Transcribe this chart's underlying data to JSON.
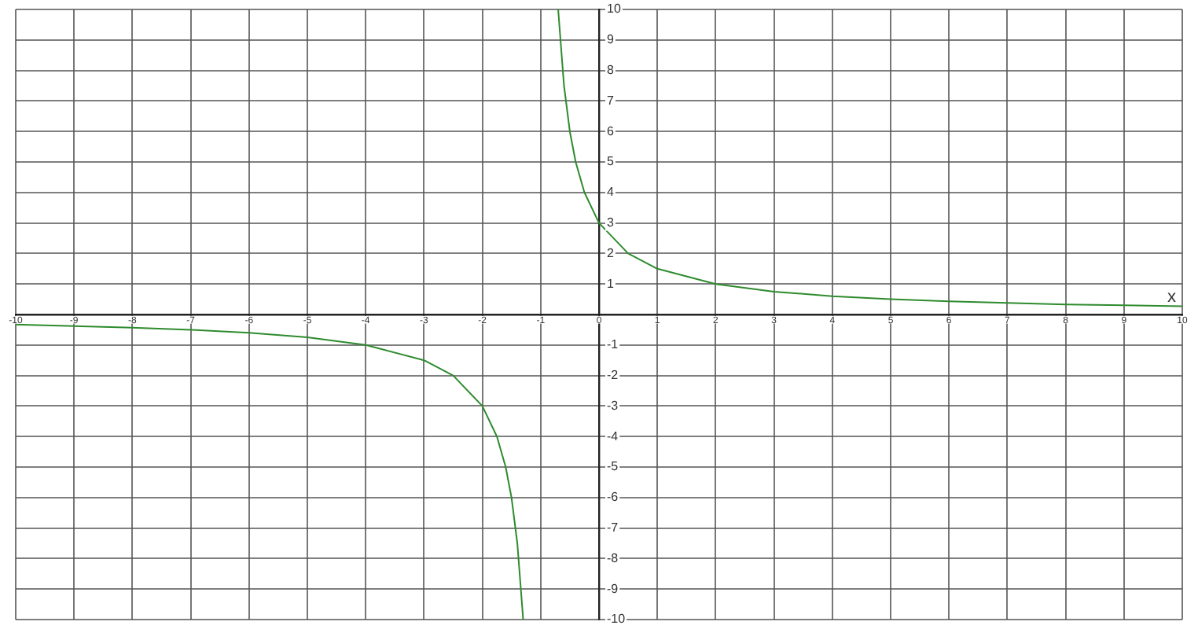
{
  "chart_data": {
    "type": "line",
    "xlabel": "x",
    "x": [
      -10,
      -9,
      -8,
      -7,
      -6,
      -5,
      -4,
      -3,
      -2.5,
      -2,
      -1.75,
      -1.6,
      -1.5,
      -1.4,
      -1.3,
      -1,
      -0.7,
      -0.6,
      -0.5,
      -0.4,
      -0.25,
      0,
      0.5,
      1,
      2,
      3,
      4,
      5,
      6,
      7,
      8,
      9,
      10
    ],
    "series": [
      {
        "color": "#2e8b2e",
        "values": [
          -0.33,
          -0.38,
          -0.43,
          -0.5,
          -0.6,
          -0.75,
          -1,
          -1.5,
          -2,
          -3,
          -4,
          -5,
          -6,
          -7.5,
          -10,
          null,
          10,
          7.5,
          6,
          5,
          4,
          3,
          2,
          1.5,
          1,
          0.75,
          0.6,
          0.5,
          0.43,
          0.38,
          0.33,
          0.3,
          0.27
        ]
      }
    ],
    "xlim": [
      -10,
      10
    ],
    "ylim": [
      -10,
      10
    ],
    "xticks": [
      -10,
      -9,
      -8,
      -7,
      -6,
      -5,
      -4,
      -3,
      -2,
      -1,
      0,
      1,
      2,
      3,
      4,
      5,
      6,
      7,
      8,
      9,
      10
    ],
    "yticks": [
      -10,
      -9,
      -8,
      -7,
      -6,
      -5,
      -4,
      -3,
      -2,
      -1,
      {
        "value": 0,
        "label": null
      },
      1,
      2,
      3,
      4,
      5,
      6,
      7,
      8,
      9,
      10
    ],
    "grid": true,
    "legend": false,
    "marker": "none",
    "line_style": "solid"
  }
}
